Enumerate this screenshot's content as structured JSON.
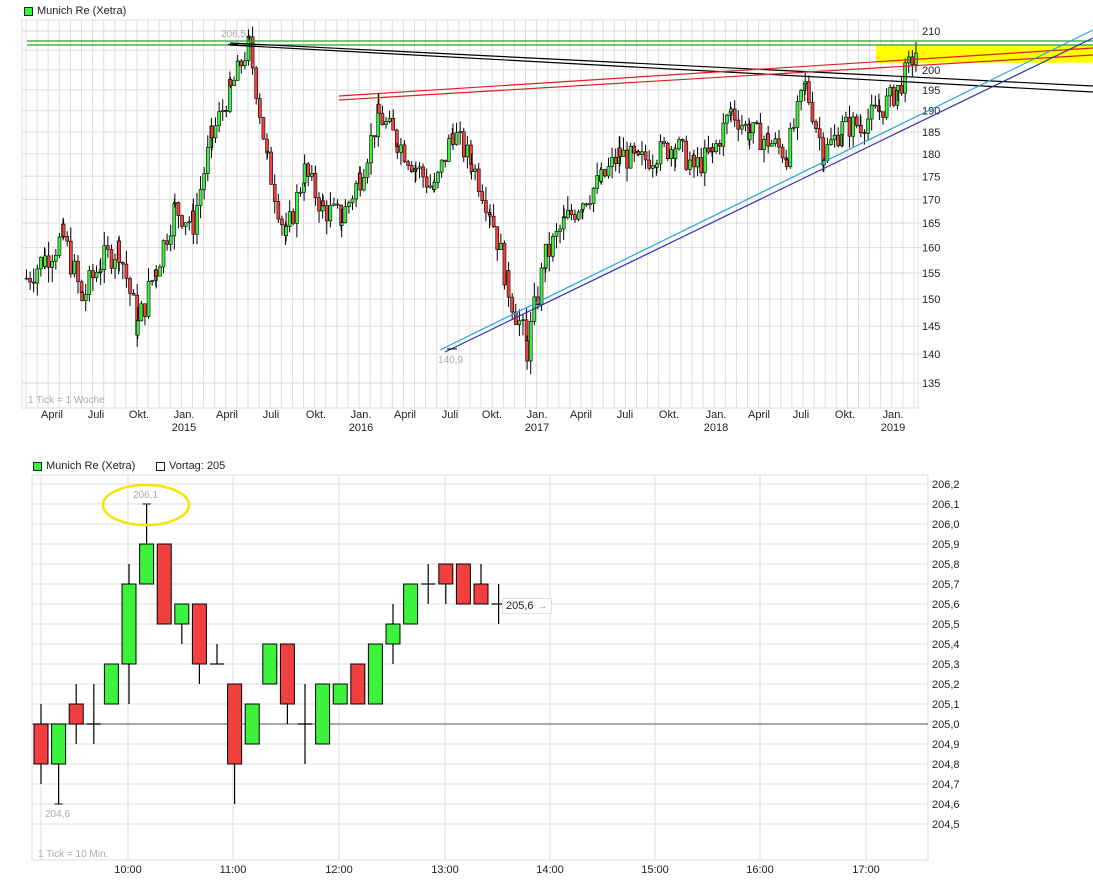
{
  "top_chart": {
    "legend": {
      "label": "Munich Re (Xetra)",
      "color": "#3df23d"
    },
    "tick_note": "1 Tick = 1 Woche",
    "high_label": "206,5",
    "low_label": "140,9"
  },
  "bottom_chart": {
    "legend": {
      "label": "Munich Re (Xetra)",
      "color": "#3df23d"
    },
    "prev_close_legend": {
      "label": "Vortag: 205"
    },
    "tick_note": "1 Tick = 10 Min.",
    "high_label": "206,1",
    "low_label": "204,6",
    "last_price_label": "205,6"
  },
  "colors": {
    "up": "#3df23d",
    "down": "#f24040",
    "grid": "#dddddd",
    "highlight": "#ffff00",
    "support": "#1fa7e0",
    "support2": "#3030b0",
    "resistance": "#e02020",
    "upper_green": "#2aa02a"
  },
  "chart_data": [
    {
      "type": "candlestick",
      "title": "Munich Re (Xetra)",
      "subtitle": "1 Tick = 1 Woche",
      "xlabel": "",
      "ylabel": "",
      "scale": "log",
      "ylim": [
        131,
        212
      ],
      "y_ticks": [
        135,
        140,
        145,
        150,
        155,
        160,
        165,
        170,
        175,
        180,
        185,
        190,
        195,
        200,
        205,
        210
      ],
      "x_ticks": [
        "April",
        "Juli",
        "Okt.",
        "Jan. 2015",
        "April",
        "Juli",
        "Okt.",
        "Jan. 2016",
        "April",
        "Juli",
        "Okt.",
        "Jan. 2017",
        "April",
        "Juli",
        "Okt.",
        "Jan. 2018",
        "April",
        "Juli",
        "Okt.",
        "Jan. 2019"
      ],
      "annotations": [
        {
          "text": "206,5",
          "type": "all-time-high",
          "x": "April 2015"
        },
        {
          "text": "140,9",
          "type": "low",
          "x": "Juli 2016"
        },
        {
          "text": "yellow band ~201-206 (breakout zone)",
          "type": "rectangle"
        },
        {
          "text": "green horizontal resistance ~207",
          "type": "line"
        },
        {
          "text": "black descending trendline from 206,5",
          "type": "line"
        },
        {
          "text": "red ascending trendline from ~193 (late 2015)",
          "type": "line"
        },
        {
          "text": "blue ascending support trendlines from 140,9",
          "type": "line"
        }
      ],
      "approx_path": [
        {
          "x": "Mar 2014",
          "close": 154
        },
        {
          "x": "Apr 2014",
          "close": 158
        },
        {
          "x": "Jun 2014",
          "close": 162
        },
        {
          "x": "Jul 2014",
          "close": 150
        },
        {
          "x": "Aug 2014",
          "close": 157
        },
        {
          "x": "Sep 2014",
          "close": 160
        },
        {
          "x": "Oct 2014",
          "close": 145
        },
        {
          "x": "Nov 2014",
          "close": 156
        },
        {
          "x": "Dec 2014",
          "close": 168
        },
        {
          "x": "Jan 2015",
          "close": 165
        },
        {
          "x": "Feb 2015",
          "close": 184
        },
        {
          "x": "Mar 2015",
          "close": 195
        },
        {
          "x": "Apr 2015",
          "close": 206.5
        },
        {
          "x": "May 2015",
          "close": 178
        },
        {
          "x": "Jun 2015",
          "close": 162
        },
        {
          "x": "Jul 2015",
          "close": 176
        },
        {
          "x": "Aug 2015",
          "close": 168
        },
        {
          "x": "Sep 2015",
          "close": 166
        },
        {
          "x": "Oct 2015",
          "close": 175
        },
        {
          "x": "Nov 2015",
          "close": 189
        },
        {
          "x": "Dec 2015",
          "close": 183
        },
        {
          "x": "Jan 2016",
          "close": 177
        },
        {
          "x": "Feb 2016",
          "close": 172
        },
        {
          "x": "Mar 2016",
          "close": 185
        },
        {
          "x": "Apr 2016",
          "close": 178
        },
        {
          "x": "May 2016",
          "close": 168
        },
        {
          "x": "Jun 2016",
          "close": 152
        },
        {
          "x": "Jul 2016",
          "close": 141
        },
        {
          "x": "Aug 2016",
          "close": 158
        },
        {
          "x": "Sep 2016",
          "close": 165
        },
        {
          "x": "Oct 2016",
          "close": 170
        },
        {
          "x": "Nov 2016",
          "close": 174
        },
        {
          "x": "Dec 2016",
          "close": 180
        },
        {
          "x": "Jan 2017",
          "close": 178
        },
        {
          "x": "Mar 2017",
          "close": 180
        },
        {
          "x": "May 2017",
          "close": 182
        },
        {
          "x": "Jul 2017",
          "close": 177
        },
        {
          "x": "Sep 2017",
          "close": 180
        },
        {
          "x": "Oct 2017",
          "close": 190
        },
        {
          "x": "Nov 2017",
          "close": 185
        },
        {
          "x": "Jan 2018",
          "close": 183
        },
        {
          "x": "Feb 2018",
          "close": 180
        },
        {
          "x": "Apr 2018",
          "close": 196
        },
        {
          "x": "Jun 2018",
          "close": 180
        },
        {
          "x": "Aug 2018",
          "close": 186
        },
        {
          "x": "Oct 2018",
          "close": 187
        },
        {
          "x": "Nov 2018",
          "close": 190
        },
        {
          "x": "Dec 2018",
          "close": 195
        },
        {
          "x": "Jan 2019",
          "close": 205
        }
      ]
    },
    {
      "type": "candlestick",
      "title": "Munich Re (Xetra)",
      "subtitle": "1 Tick = 10 Min.",
      "legend": [
        "Munich Re (Xetra)",
        "Vortag: 205"
      ],
      "xlabel": "",
      "ylabel": "",
      "ylim": [
        204.4,
        206.25
      ],
      "y_ticks": [
        204.5,
        204.6,
        204.7,
        204.8,
        204.9,
        205.0,
        205.1,
        205.2,
        205.3,
        205.4,
        205.5,
        205.6,
        205.7,
        205.8,
        205.9,
        206.0,
        206.1,
        206.2
      ],
      "x_ticks": [
        "10:00",
        "11:00",
        "12:00",
        "13:00",
        "14:00",
        "15:00",
        "16:00",
        "17:00"
      ],
      "reference_line": {
        "label": "Vortag",
        "value": 205.0
      },
      "annotations": [
        {
          "text": "206,1",
          "type": "high"
        },
        {
          "text": "204,6",
          "type": "low"
        },
        {
          "text": "205,6",
          "type": "last"
        }
      ],
      "candles": [
        {
          "t": "09:10",
          "o": 205.0,
          "h": 205.1,
          "l": 204.7,
          "c": 204.8
        },
        {
          "t": "09:20",
          "o": 204.8,
          "h": 205.0,
          "l": 204.6,
          "c": 205.0
        },
        {
          "t": "09:30",
          "o": 205.1,
          "h": 205.2,
          "l": 204.9,
          "c": 205.0
        },
        {
          "t": "09:40",
          "o": 205.0,
          "h": 205.2,
          "l": 204.9,
          "c": 205.0
        },
        {
          "t": "09:50",
          "o": 205.1,
          "h": 205.3,
          "l": 205.1,
          "c": 205.3
        },
        {
          "t": "10:00",
          "o": 205.3,
          "h": 205.8,
          "l": 205.1,
          "c": 205.7
        },
        {
          "t": "10:10",
          "o": 205.7,
          "h": 206.1,
          "l": 205.7,
          "c": 205.9
        },
        {
          "t": "10:20",
          "o": 205.9,
          "h": 205.9,
          "l": 205.5,
          "c": 205.5
        },
        {
          "t": "10:30",
          "o": 205.5,
          "h": 205.6,
          "l": 205.4,
          "c": 205.6
        },
        {
          "t": "10:40",
          "o": 205.6,
          "h": 205.6,
          "l": 205.2,
          "c": 205.3
        },
        {
          "t": "10:50",
          "o": 205.3,
          "h": 205.4,
          "l": 205.3,
          "c": 205.3
        },
        {
          "t": "11:00",
          "o": 205.2,
          "h": 205.2,
          "l": 204.6,
          "c": 204.8
        },
        {
          "t": "11:10",
          "o": 204.9,
          "h": 205.1,
          "l": 204.9,
          "c": 205.1
        },
        {
          "t": "11:20",
          "o": 205.2,
          "h": 205.4,
          "l": 205.2,
          "c": 205.4
        },
        {
          "t": "11:30",
          "o": 205.4,
          "h": 205.4,
          "l": 205.0,
          "c": 205.1
        },
        {
          "t": "11:40",
          "o": 205.0,
          "h": 205.2,
          "l": 204.8,
          "c": 205.0
        },
        {
          "t": "11:50",
          "o": 204.9,
          "h": 205.2,
          "l": 204.9,
          "c": 205.2
        },
        {
          "t": "12:00",
          "o": 205.1,
          "h": 205.2,
          "l": 205.1,
          "c": 205.2
        },
        {
          "t": "12:10",
          "o": 205.3,
          "h": 205.3,
          "l": 205.1,
          "c": 205.1
        },
        {
          "t": "12:20",
          "o": 205.1,
          "h": 205.4,
          "l": 205.1,
          "c": 205.4
        },
        {
          "t": "12:30",
          "o": 205.4,
          "h": 205.6,
          "l": 205.3,
          "c": 205.5
        },
        {
          "t": "12:40",
          "o": 205.5,
          "h": 205.7,
          "l": 205.5,
          "c": 205.7
        },
        {
          "t": "12:50",
          "o": 205.7,
          "h": 205.8,
          "l": 205.6,
          "c": 205.7
        },
        {
          "t": "13:00",
          "o": 205.8,
          "h": 205.8,
          "l": 205.6,
          "c": 205.7
        },
        {
          "t": "13:10",
          "o": 205.8,
          "h": 205.8,
          "l": 205.6,
          "c": 205.6
        },
        {
          "t": "13:20",
          "o": 205.7,
          "h": 205.8,
          "l": 205.6,
          "c": 205.6
        },
        {
          "t": "13:30",
          "o": 205.6,
          "h": 205.7,
          "l": 205.5,
          "c": 205.6
        }
      ]
    }
  ]
}
